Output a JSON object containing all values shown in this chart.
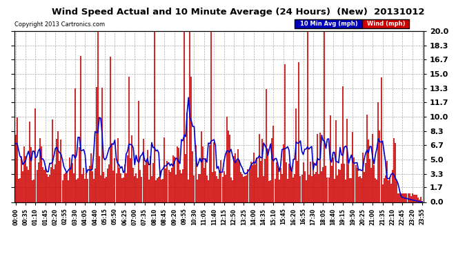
{
  "title": "Wind Speed Actual and 10 Minute Average (24 Hours)  (New)  20131012",
  "copyright": "Copyright 2013 Cartronics.com",
  "legend_labels": [
    "10 Min Avg (mph)",
    "Wind (mph)"
  ],
  "legend_bg_colors": [
    "#0000bb",
    "#cc0000"
  ],
  "y_ticks": [
    0.0,
    1.7,
    3.3,
    5.0,
    6.7,
    8.3,
    10.0,
    11.7,
    13.3,
    15.0,
    16.7,
    18.3,
    20.0
  ],
  "ylim": [
    0.0,
    20.0
  ],
  "background_color": "#ffffff",
  "plot_bg_color": "#ffffff",
  "grid_color": "#aaaaaa",
  "wind_color": "#cc0000",
  "avg_color": "#0000cc",
  "num_points": 288
}
